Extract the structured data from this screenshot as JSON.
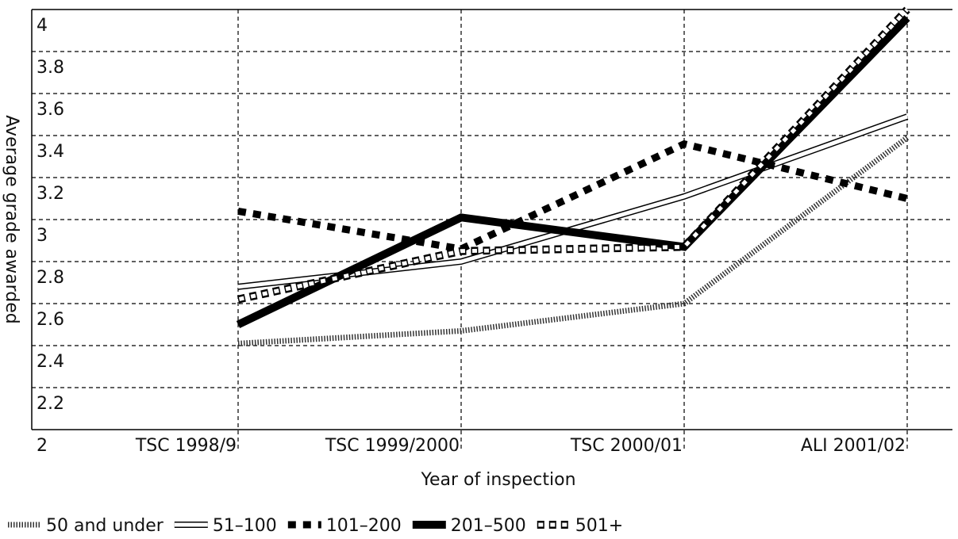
{
  "chart_data": {
    "type": "line",
    "y_label": "Average grade awarded",
    "x_label": "Year of inspection",
    "categories": [
      "TSC 1998/9",
      "TSC 1999/2000",
      "TSC 2000/01",
      "ALI 2001/02"
    ],
    "series": [
      {
        "name": "50 and under",
        "color": "#333333",
        "values": [
          2.41,
          2.47,
          2.6,
          3.39
        ]
      },
      {
        "name": "51–100",
        "color": "#000000",
        "values": [
          2.68,
          2.8,
          3.11,
          3.49
        ]
      },
      {
        "name": "101–200",
        "color": "#000000",
        "values": [
          3.04,
          2.86,
          3.36,
          3.1
        ]
      },
      {
        "name": "201–500",
        "color": "#000000",
        "values": [
          2.5,
          3.01,
          2.87,
          3.96
        ]
      },
      {
        "name": "501+",
        "color": "#000000",
        "values": [
          2.62,
          2.85,
          2.87,
          4.0
        ]
      }
    ],
    "ylim": [
      2,
      4
    ],
    "yticks": [
      2,
      2.2,
      2.4,
      2.6,
      2.8,
      3,
      3.2,
      3.4,
      3.6,
      3.8,
      4
    ],
    "grid": true,
    "legend": "bottom"
  }
}
